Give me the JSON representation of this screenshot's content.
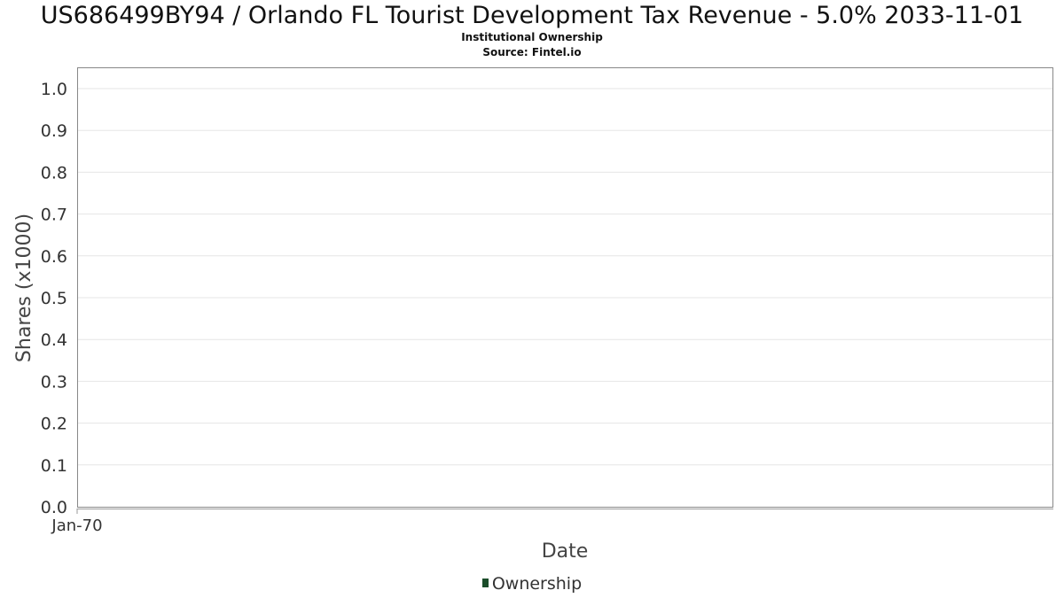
{
  "chart_data": {
    "type": "bar",
    "title": "US686499BY94 / Orlando FL Tourist Development Tax Revenue - 5.0% 2033-11-01",
    "subtitle": "Institutional Ownership",
    "source": "Source: Fintel.io",
    "xlabel": "Date",
    "ylabel": "Shares (x1000)",
    "ylim": [
      0,
      1.0
    ],
    "y_ticks": [
      "0.0",
      "0.1",
      "0.2",
      "0.3",
      "0.4",
      "0.5",
      "0.6",
      "0.7",
      "0.8",
      "0.9",
      "1.0"
    ],
    "x_ticks": [
      "Jan-70"
    ],
    "grid": true,
    "legend_position": "bottom",
    "series": [
      {
        "name": "Ownership",
        "color": "#1b4d2a",
        "values": []
      }
    ]
  }
}
